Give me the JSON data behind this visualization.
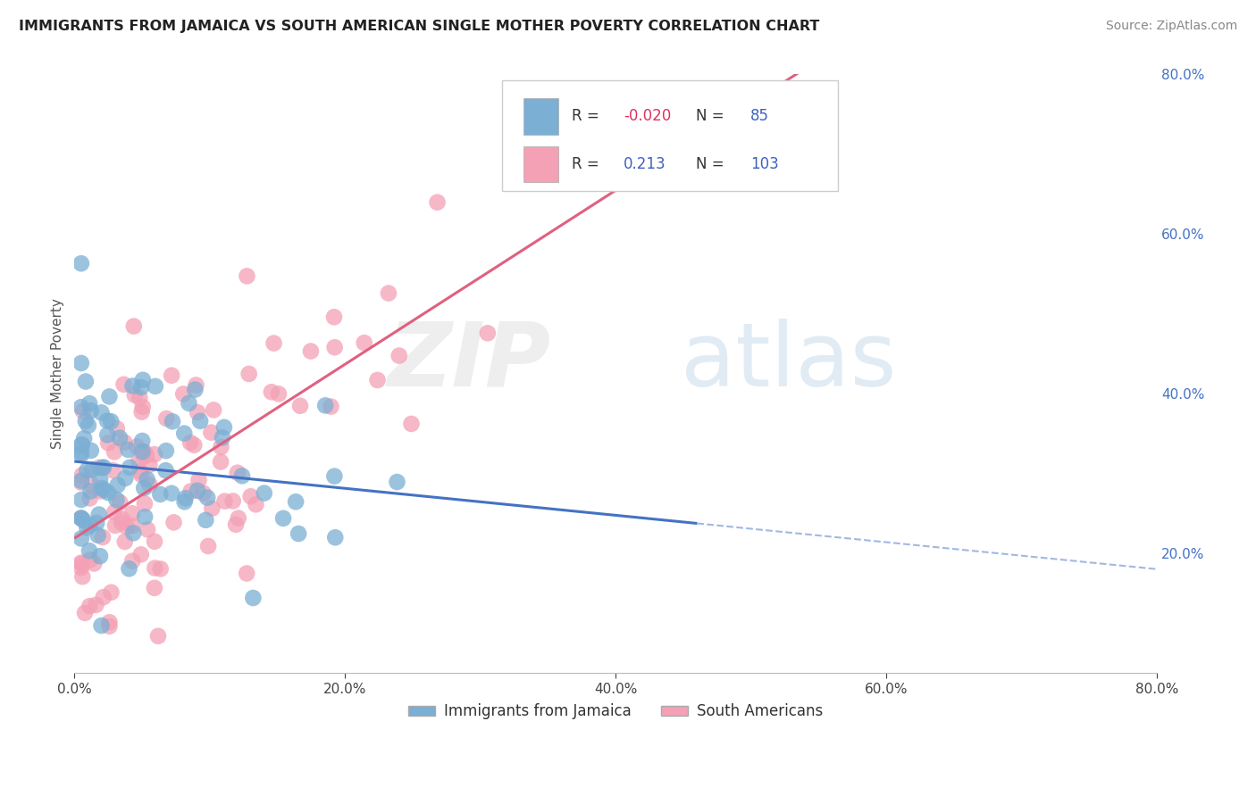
{
  "title": "IMMIGRANTS FROM JAMAICA VS SOUTH AMERICAN SINGLE MOTHER POVERTY CORRELATION CHART",
  "source": "Source: ZipAtlas.com",
  "ylabel": "Single Mother Poverty",
  "xlim": [
    0.0,
    0.8
  ],
  "ylim": [
    0.05,
    0.8
  ],
  "x_ticks": [
    0.0,
    0.2,
    0.4,
    0.6,
    0.8
  ],
  "y_ticks": [
    0.2,
    0.4,
    0.6,
    0.8
  ],
  "legend_label1": "Immigrants from Jamaica",
  "legend_label2": "South Americans",
  "R1": -0.02,
  "N1": 85,
  "R2": 0.213,
  "N2": 103,
  "color1": "#7bafd4",
  "color2": "#f4a0b5",
  "line_color1": "#4472c4",
  "line_color2": "#e06080",
  "background_color": "#ffffff",
  "grid_color": "#cccccc",
  "right_tick_color": "#4472c4",
  "title_color": "#222222",
  "source_color": "#888888",
  "legend_text_color": "#333333",
  "r_value_neg_color": "#e03060",
  "r_value_pos_color": "#4060c0",
  "n_value_color": "#4060c0"
}
